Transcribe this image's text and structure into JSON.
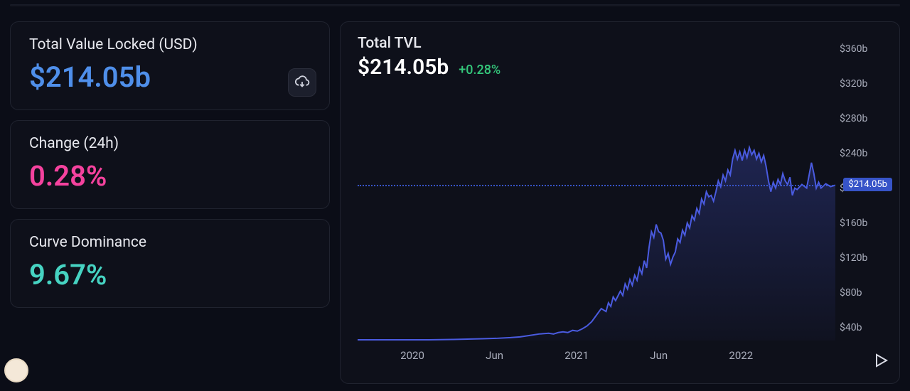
{
  "stats": {
    "tvl": {
      "label": "Total Value Locked (USD)",
      "value": "$214.05b",
      "color": "#4f8fea"
    },
    "change": {
      "label": "Change (24h)",
      "value": "0.28%",
      "color": "#f5429e"
    },
    "dominance": {
      "label": "Curve Dominance",
      "value": "9.67%",
      "color": "#46d3c2"
    }
  },
  "chart": {
    "title": "Total TVL",
    "value": "$214.05b",
    "change": "+0.28%",
    "change_color": "#34c77b",
    "current_label": "$214.05b",
    "current_value": 214.05,
    "type": "area",
    "line_color": "#4a5be0",
    "line_width": 2,
    "fill_color_top": "rgba(74,91,224,0.28)",
    "fill_color_bottom": "rgba(74,91,224,0.03)",
    "reference_line_color": "#3754c8",
    "background_color": "#0e101a",
    "ylim": [
      0,
      380
    ],
    "y_ticks": [
      "$360b",
      "$320b",
      "$280b",
      "$240b",
      "$200b",
      "$160b",
      "$120b",
      "$80b",
      "$40b"
    ],
    "y_tick_values": [
      360,
      320,
      280,
      240,
      200,
      160,
      120,
      80,
      40
    ],
    "x_ticks": [
      "2020",
      "Jun",
      "2021",
      "Jun",
      "2022"
    ],
    "x_tick_positions": [
      0.12,
      0.3,
      0.48,
      0.66,
      0.84
    ],
    "series": [
      [
        0.0,
        1
      ],
      [
        0.05,
        1
      ],
      [
        0.1,
        1
      ],
      [
        0.15,
        1
      ],
      [
        0.2,
        1.5
      ],
      [
        0.23,
        2
      ],
      [
        0.26,
        2.5
      ],
      [
        0.29,
        3
      ],
      [
        0.32,
        4
      ],
      [
        0.34,
        5
      ],
      [
        0.36,
        7
      ],
      [
        0.38,
        9
      ],
      [
        0.4,
        10
      ],
      [
        0.41,
        9
      ],
      [
        0.42,
        11
      ],
      [
        0.43,
        12
      ],
      [
        0.44,
        11
      ],
      [
        0.45,
        14
      ],
      [
        0.46,
        13
      ],
      [
        0.47,
        16
      ],
      [
        0.48,
        20
      ],
      [
        0.49,
        26
      ],
      [
        0.5,
        35
      ],
      [
        0.51,
        44
      ],
      [
        0.52,
        40
      ],
      [
        0.525,
        52
      ],
      [
        0.53,
        47
      ],
      [
        0.535,
        60
      ],
      [
        0.54,
        55
      ],
      [
        0.55,
        68
      ],
      [
        0.555,
        62
      ],
      [
        0.56,
        78
      ],
      [
        0.565,
        71
      ],
      [
        0.57,
        84
      ],
      [
        0.575,
        76
      ],
      [
        0.58,
        90
      ],
      [
        0.585,
        83
      ],
      [
        0.59,
        100
      ],
      [
        0.595,
        92
      ],
      [
        0.6,
        110
      ],
      [
        0.605,
        100
      ],
      [
        0.61,
        128
      ],
      [
        0.615,
        150
      ],
      [
        0.62,
        142
      ],
      [
        0.625,
        160
      ],
      [
        0.63,
        150
      ],
      [
        0.635,
        148
      ],
      [
        0.64,
        138
      ],
      [
        0.645,
        112
      ],
      [
        0.65,
        120
      ],
      [
        0.655,
        105
      ],
      [
        0.66,
        115
      ],
      [
        0.665,
        122
      ],
      [
        0.67,
        140
      ],
      [
        0.675,
        135
      ],
      [
        0.68,
        152
      ],
      [
        0.685,
        145
      ],
      [
        0.69,
        162
      ],
      [
        0.695,
        155
      ],
      [
        0.7,
        172
      ],
      [
        0.705,
        166
      ],
      [
        0.71,
        182
      ],
      [
        0.715,
        175
      ],
      [
        0.72,
        195
      ],
      [
        0.725,
        188
      ],
      [
        0.73,
        205
      ],
      [
        0.735,
        198
      ],
      [
        0.74,
        200
      ],
      [
        0.745,
        192
      ],
      [
        0.75,
        205
      ],
      [
        0.755,
        220
      ],
      [
        0.76,
        212
      ],
      [
        0.765,
        228
      ],
      [
        0.77,
        220
      ],
      [
        0.775,
        235
      ],
      [
        0.78,
        228
      ],
      [
        0.785,
        250
      ],
      [
        0.79,
        262
      ],
      [
        0.795,
        250
      ],
      [
        0.8,
        260
      ],
      [
        0.805,
        248
      ],
      [
        0.81,
        262
      ],
      [
        0.815,
        252
      ],
      [
        0.82,
        266
      ],
      [
        0.825,
        256
      ],
      [
        0.83,
        262
      ],
      [
        0.835,
        250
      ],
      [
        0.84,
        258
      ],
      [
        0.845,
        246
      ],
      [
        0.85,
        255
      ],
      [
        0.855,
        240
      ],
      [
        0.86,
        220
      ],
      [
        0.865,
        205
      ],
      [
        0.87,
        218
      ],
      [
        0.875,
        210
      ],
      [
        0.88,
        222
      ],
      [
        0.885,
        215
      ],
      [
        0.89,
        230
      ],
      [
        0.895,
        220
      ],
      [
        0.9,
        215
      ],
      [
        0.905,
        225
      ],
      [
        0.91,
        200
      ],
      [
        0.915,
        210
      ],
      [
        0.92,
        208
      ],
      [
        0.93,
        215
      ],
      [
        0.94,
        210
      ],
      [
        0.95,
        245
      ],
      [
        0.955,
        230
      ],
      [
        0.96,
        210
      ],
      [
        0.965,
        218
      ],
      [
        0.97,
        210
      ],
      [
        0.98,
        216
      ],
      [
        0.99,
        212
      ],
      [
        1.0,
        214
      ]
    ]
  },
  "ui_colors": {
    "background": "#0b0d17",
    "card_bg": "#0e101a",
    "card_border": "#20232f",
    "text_primary": "#e7e8ee",
    "text_muted": "#a9adbb"
  }
}
